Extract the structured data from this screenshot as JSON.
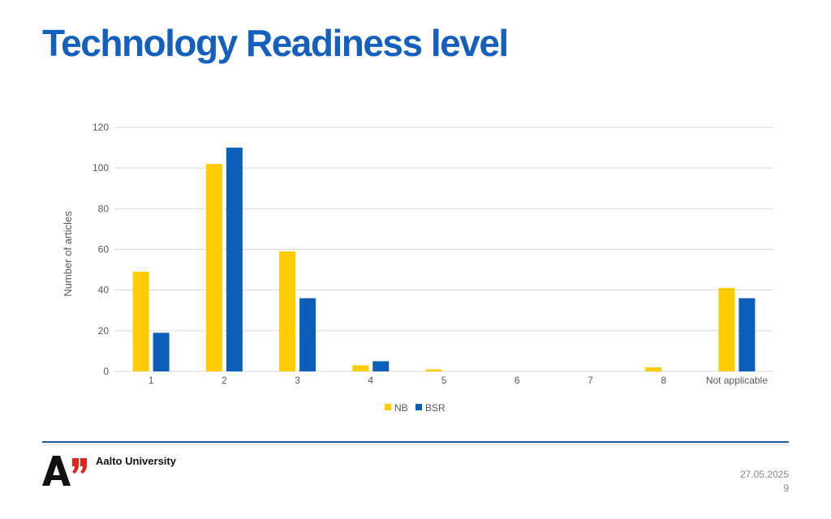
{
  "slide": {
    "title": "Technology Readiness level",
    "university": "Aalto University",
    "logo_mark": "A”",
    "date": "27.05.2025",
    "page_number": "9"
  },
  "colors": {
    "title": "#1560bd",
    "nb": "#ffcc00",
    "bsr": "#0b5fb8",
    "logo_quote": "#e2231a"
  },
  "chart_data": {
    "type": "bar",
    "title": "",
    "xlabel": "",
    "ylabel": "Number of articles",
    "ylim": [
      0,
      120
    ],
    "yticks": [
      0,
      20,
      40,
      60,
      80,
      100,
      120
    ],
    "categories": [
      "1",
      "2",
      "3",
      "4",
      "5",
      "6",
      "7",
      "8",
      "Not applicable"
    ],
    "series": [
      {
        "name": "NB",
        "color": "#ffcc00",
        "values": [
          49,
          102,
          59,
          3,
          1,
          0,
          0,
          2,
          41
        ]
      },
      {
        "name": "BSR",
        "color": "#0b5fb8",
        "values": [
          19,
          110,
          36,
          5,
          0,
          0,
          0,
          0,
          36
        ]
      }
    ],
    "grid": true,
    "legend": "bottom"
  }
}
